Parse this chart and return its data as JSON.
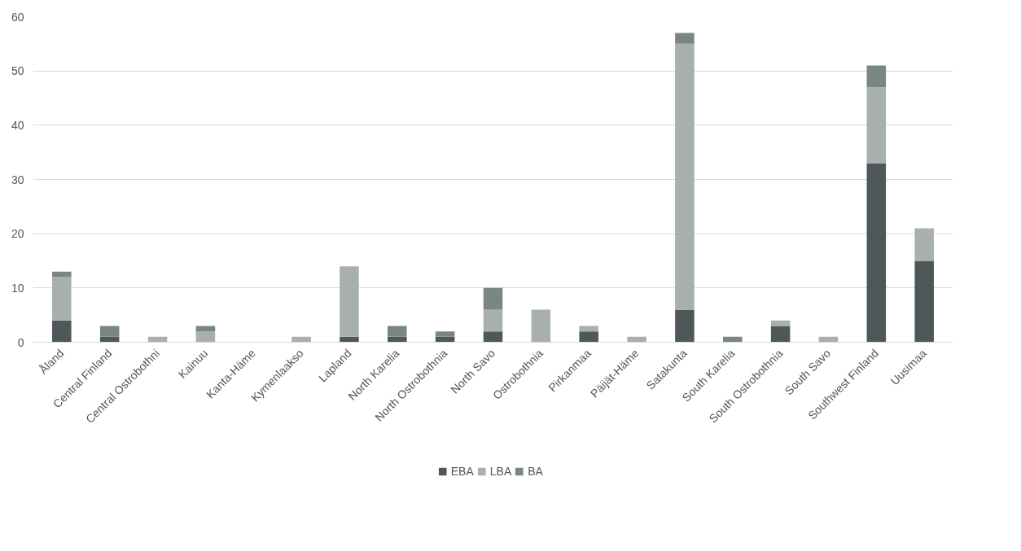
{
  "chart_data": {
    "type": "bar",
    "stacked": true,
    "categories": [
      "Åland",
      "Central Finland",
      "Central Ostrobothni",
      "Kainuu",
      "Kanta-Häme",
      "Kymenlaakso",
      "Lapland",
      "North Karelia",
      "North Ostrobothnia",
      "North Savo",
      "Ostrobothnia",
      "Pirkanmaa",
      "Päijät-Häme",
      "Satakunta",
      "South Karelia",
      "South Ostrobothnia",
      "South Savo",
      "Southwest Finland",
      "Uusimaa"
    ],
    "series": [
      {
        "name": "EBA",
        "color": "#4f5858",
        "values": [
          4,
          1,
          0,
          0,
          0,
          0,
          1,
          1,
          1,
          2,
          0,
          2,
          0,
          6,
          0,
          3,
          0,
          33,
          15
        ]
      },
      {
        "name": "LBA",
        "color": "#a7b0af",
        "values": [
          8,
          0,
          1,
          2,
          0,
          1,
          13,
          0,
          0,
          4,
          6,
          1,
          1,
          49,
          0,
          1,
          1,
          14,
          6
        ]
      },
      {
        "name": "BA",
        "color": "#7a8684",
        "values": [
          1,
          2,
          0,
          1,
          0,
          0,
          0,
          2,
          1,
          4,
          0,
          0,
          0,
          2,
          1,
          0,
          0,
          4,
          0
        ]
      }
    ],
    "ylim": [
      0,
      60
    ],
    "yticks": [
      0,
      10,
      20,
      30,
      40,
      50,
      60
    ],
    "grid": "y",
    "legend": "bottom"
  }
}
